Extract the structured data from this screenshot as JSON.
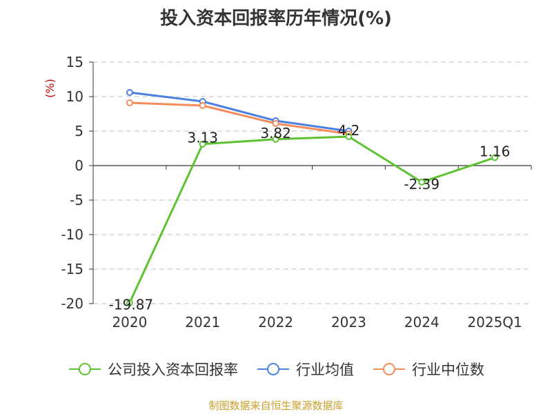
{
  "title": "投入资本回报率历年情况(%)",
  "footer": "制图数据来自恒生聚源数据库",
  "chart_data": {
    "type": "line",
    "title": "投入资本回报率历年情况(%)",
    "ylabel": "(%)",
    "ylim": [
      -20,
      15
    ],
    "yticks": [
      15,
      10,
      5,
      0,
      -5,
      -10,
      -15,
      -20
    ],
    "grid": true,
    "legend_position": "bottom",
    "categories": [
      "2020",
      "2021",
      "2022",
      "2023",
      "2024",
      "2025Q1"
    ],
    "series": [
      {
        "name": "公司投入资本回报率",
        "color": "#5cc22f",
        "values": [
          -19.87,
          3.13,
          3.82,
          4.2,
          -2.39,
          1.16
        ],
        "labels": [
          "-19.87",
          "3.13",
          "3.82",
          "4.2",
          "-2.39",
          "1.16"
        ]
      },
      {
        "name": "行业均值",
        "color": "#4b7fe0",
        "values": [
          10.6,
          9.3,
          6.5,
          5.0,
          null,
          null
        ]
      },
      {
        "name": "行业中位数",
        "color": "#f58b5a",
        "values": [
          9.1,
          8.7,
          6.1,
          4.6,
          null,
          null
        ]
      }
    ]
  }
}
